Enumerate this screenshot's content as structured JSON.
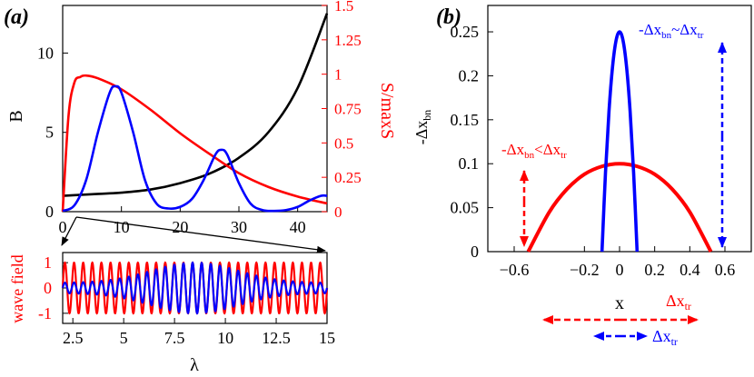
{
  "colors": {
    "black": "#000000",
    "red": "#ff0000",
    "blue": "#0000ff"
  },
  "chart_data": [
    {
      "type": "line",
      "panel_label": "(a)",
      "xlim": [
        0,
        45
      ],
      "xticks": [
        "0",
        "10",
        "20",
        "30",
        "40"
      ],
      "ylim_left": [
        0,
        13
      ],
      "yticks_left": [
        "0",
        "5",
        "10"
      ],
      "ylabel_left": "B",
      "ylim_right": [
        0,
        1.5
      ],
      "yticks_right": [
        "0",
        "0.25",
        "0.5",
        "0.75",
        "1",
        "1.25",
        "1.5"
      ],
      "ylabel_right": "S/maxS",
      "series": [
        {
          "axis": "left",
          "color": "black",
          "x": [
            0,
            5,
            10,
            15,
            20,
            25,
            30,
            35,
            40,
            45
          ],
          "y": [
            1.0,
            1.1,
            1.2,
            1.4,
            1.8,
            2.4,
            3.4,
            5.0,
            7.8,
            12.5
          ]
        },
        {
          "axis": "right",
          "color": "red",
          "x": [
            0,
            1,
            2,
            3,
            4,
            6,
            10,
            15,
            20,
            25,
            30,
            35,
            40,
            45
          ],
          "y": [
            0.0,
            0.7,
            0.94,
            0.98,
            0.99,
            0.97,
            0.89,
            0.74,
            0.57,
            0.42,
            0.28,
            0.18,
            0.11,
            0.06
          ]
        },
        {
          "axis": "left",
          "color": "blue",
          "x": [
            0,
            2,
            4,
            6,
            8,
            9,
            10,
            12,
            14,
            16,
            18,
            20,
            22,
            24,
            26,
            27,
            28,
            30,
            32,
            34,
            36,
            38,
            40,
            42,
            44,
            45
          ],
          "y": [
            0.05,
            0.4,
            2.0,
            5.0,
            7.5,
            7.9,
            7.5,
            5.0,
            2.0,
            0.5,
            0.2,
            0.3,
            0.8,
            2.0,
            3.6,
            3.9,
            3.6,
            1.8,
            0.5,
            0.1,
            0.05,
            0.1,
            0.3,
            0.7,
            1.0,
            1.0
          ]
        }
      ]
    },
    {
      "type": "line",
      "xlim": [
        2,
        15
      ],
      "xticks": [
        "2.5",
        "5",
        "7.5",
        "10",
        "12.5",
        "15"
      ],
      "xlabel": "λ",
      "ylim": [
        -1.4,
        1.4
      ],
      "yticks": [
        "-1",
        "0",
        "1"
      ],
      "ylabel": "wave field",
      "series": [
        {
          "color": "red",
          "cycles": 29,
          "amplitude": 1.0,
          "amplitude_note": "constant"
        },
        {
          "color": "blue",
          "cycles": 29,
          "amplitude_min": 0.2,
          "amplitude_max": 1.0,
          "amplitude_note": "envelope peaks near λ=8"
        }
      ]
    },
    {
      "type": "line",
      "panel_label": "(b)",
      "xlim": [
        -0.75,
        0.75
      ],
      "xticks": [
        "−0.6",
        "−0.2",
        "0",
        "0.2",
        "0.4",
        "0.6"
      ],
      "xtick_values": [
        -0.6,
        -0.2,
        0,
        0.2,
        0.4,
        0.6
      ],
      "xlabel": "x",
      "ylim": [
        0,
        0.28
      ],
      "yticks": [
        "0",
        "0.05",
        "0.1",
        "0.15",
        "0.2",
        "0.25"
      ],
      "ylabel": "-Δx",
      "ylabel_sub": "bn",
      "series": [
        {
          "color": "red",
          "x": [
            -0.52,
            -0.4,
            -0.3,
            -0.2,
            -0.1,
            0,
            0.1,
            0.2,
            0.3,
            0.4,
            0.52
          ],
          "y": [
            0.0,
            0.045,
            0.071,
            0.088,
            0.097,
            0.1,
            0.097,
            0.088,
            0.071,
            0.045,
            0.0
          ]
        },
        {
          "color": "blue",
          "x": [
            -0.1,
            -0.08,
            -0.06,
            -0.04,
            -0.02,
            0,
            0.02,
            0.04,
            0.06,
            0.08,
            0.1
          ],
          "y": [
            0.0,
            0.09,
            0.16,
            0.21,
            0.24,
            0.25,
            0.24,
            0.21,
            0.16,
            0.09,
            0.0
          ]
        }
      ],
      "annotations": {
        "red": {
          "a": "-Δx",
          "a_sub": "bn",
          "rel": "<",
          "b": "Δx",
          "b_sub": "tr"
        },
        "blue": {
          "a": "-Δx",
          "a_sub": "bn",
          "rel": "~",
          "b": "Δx",
          "b_sub": "tr"
        },
        "red_arrow": {
          "text": "Δx",
          "sub": "tr"
        },
        "blue_arrow": {
          "text": "Δx",
          "sub": "tr"
        }
      }
    }
  ]
}
